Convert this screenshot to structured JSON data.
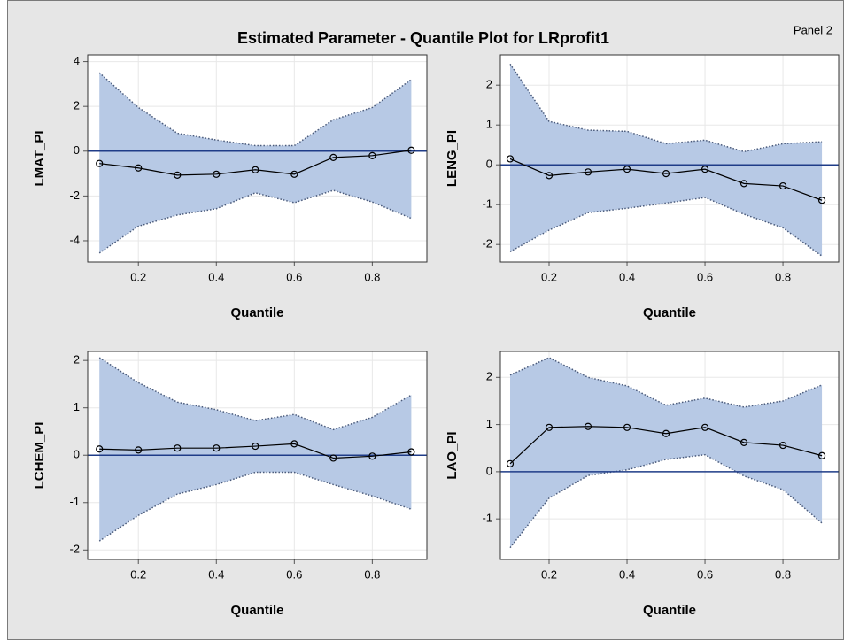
{
  "title": "Estimated Parameter - Quantile Plot for LRprofit1",
  "panel_label": "Panel 2",
  "chart_data": [
    {
      "type": "quantile-band",
      "xlabel": "Quantile",
      "ylabel": "LMAT_PI",
      "x": [
        0.1,
        0.2,
        0.3,
        0.4,
        0.5,
        0.6,
        0.7,
        0.8,
        0.9
      ],
      "values": [
        -0.55,
        -0.75,
        -1.07,
        -1.03,
        -0.83,
        -1.03,
        -0.28,
        -0.2,
        0.04
      ],
      "upper": [
        3.5,
        1.95,
        0.8,
        0.5,
        0.25,
        0.25,
        1.4,
        1.95,
        3.2
      ],
      "lower": [
        -4.55,
        -3.35,
        -2.85,
        -2.57,
        -1.86,
        -2.3,
        -1.75,
        -2.27,
        -3.0
      ],
      "xlim": [
        0.07,
        0.94
      ],
      "ylim": [
        -4.95,
        4.3
      ],
      "xticks": [
        0.2,
        0.4,
        0.6,
        0.8
      ],
      "yticks": [
        -4,
        -2,
        0,
        2,
        4
      ],
      "reference_line": 0,
      "grid": true,
      "color": "#000000",
      "band_color": "#b7c9e5",
      "reference_color": "#1f3c88"
    },
    {
      "type": "quantile-band",
      "xlabel": "Quantile",
      "ylabel": "LENG_PI",
      "x": [
        0.1,
        0.2,
        0.3,
        0.4,
        0.5,
        0.6,
        0.7,
        0.8,
        0.9
      ],
      "values": [
        0.15,
        -0.27,
        -0.18,
        -0.11,
        -0.22,
        -0.11,
        -0.47,
        -0.53,
        -0.89
      ],
      "upper": [
        2.53,
        1.09,
        0.87,
        0.84,
        0.53,
        0.62,
        0.33,
        0.53,
        0.58
      ],
      "lower": [
        -2.18,
        -1.64,
        -1.2,
        -1.09,
        -0.96,
        -0.82,
        -1.24,
        -1.58,
        -2.29
      ],
      "xlim": [
        0.075,
        0.943
      ],
      "ylim": [
        -2.44,
        2.76
      ],
      "xticks": [
        0.2,
        0.4,
        0.6,
        0.8
      ],
      "yticks": [
        -2,
        -1,
        0,
        1,
        2
      ],
      "reference_line": 0,
      "grid": true,
      "color": "#000000",
      "band_color": "#b7c9e5",
      "reference_color": "#1f3c88"
    },
    {
      "type": "quantile-band",
      "xlabel": "Quantile",
      "ylabel": "LCHEM_PI",
      "x": [
        0.1,
        0.2,
        0.3,
        0.4,
        0.5,
        0.6,
        0.7,
        0.8,
        0.9
      ],
      "values": [
        0.13,
        0.11,
        0.15,
        0.15,
        0.19,
        0.24,
        -0.06,
        -0.02,
        0.07
      ],
      "upper": [
        2.06,
        1.53,
        1.12,
        0.96,
        0.73,
        0.86,
        0.54,
        0.8,
        1.27
      ],
      "lower": [
        -1.81,
        -1.27,
        -0.82,
        -0.62,
        -0.36,
        -0.36,
        -0.62,
        -0.86,
        -1.14
      ],
      "xlim": [
        0.07,
        0.94
      ],
      "ylim": [
        -2.2,
        2.19
      ],
      "xticks": [
        0.2,
        0.4,
        0.6,
        0.8
      ],
      "yticks": [
        -2,
        -1,
        0,
        1,
        2
      ],
      "reference_line": 0,
      "grid": true,
      "color": "#000000",
      "band_color": "#b7c9e5",
      "reference_color": "#1f3c88"
    },
    {
      "type": "quantile-band",
      "xlabel": "Quantile",
      "ylabel": "LAO_PI",
      "x": [
        0.1,
        0.2,
        0.3,
        0.4,
        0.5,
        0.6,
        0.7,
        0.8,
        0.9
      ],
      "values": [
        0.17,
        0.94,
        0.96,
        0.94,
        0.81,
        0.94,
        0.62,
        0.56,
        0.34
      ],
      "upper": [
        2.05,
        2.42,
        2.0,
        1.82,
        1.41,
        1.56,
        1.37,
        1.5,
        1.84
      ],
      "lower": [
        -1.61,
        -0.56,
        -0.08,
        0.04,
        0.26,
        0.36,
        -0.09,
        -0.38,
        -1.09
      ],
      "xlim": [
        0.075,
        0.943
      ],
      "ylim": [
        -1.86,
        2.55
      ],
      "xticks": [
        0.2,
        0.4,
        0.6,
        0.8
      ],
      "yticks": [
        -1,
        0,
        1,
        2
      ],
      "reference_line": 0,
      "grid": true,
      "color": "#000000",
      "band_color": "#b7c9e5",
      "reference_color": "#1f3c88"
    }
  ]
}
